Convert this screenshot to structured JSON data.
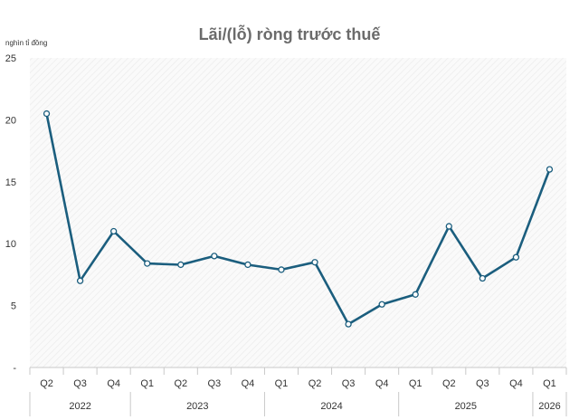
{
  "chart_data": {
    "type": "line",
    "title": "Lãi/(lỗ) ròng trước thuế",
    "unit_label": "nghìn tỉ đồng",
    "ylim": [
      0,
      25
    ],
    "yticks": [
      "-",
      "5",
      "10",
      "15",
      "20",
      "25"
    ],
    "grid": false,
    "legend": "none",
    "categories": [
      "Q2",
      "Q3",
      "Q4",
      "Q1",
      "Q2",
      "Q3",
      "Q4",
      "Q1",
      "Q2",
      "Q3",
      "Q4",
      "Q1",
      "Q2",
      "Q3",
      "Q4",
      "Q1"
    ],
    "year_groups": [
      {
        "label": "2022",
        "count": 3
      },
      {
        "label": "2023",
        "count": 4
      },
      {
        "label": "2024",
        "count": 4
      },
      {
        "label": "2025",
        "count": 4
      },
      {
        "label": "2026",
        "count": 1
      }
    ],
    "series": [
      {
        "values": [
          20.5,
          7.0,
          11.0,
          8.4,
          8.3,
          9.0,
          8.3,
          7.9,
          8.5,
          3.5,
          5.1,
          5.9,
          11.4,
          7.2,
          8.9,
          16.0
        ]
      }
    ],
    "colors": {
      "line": "#1b5e7e",
      "marker_fill": "#ffffff",
      "background_hatch": "#f0f0f0",
      "axis": "#c8c8c8",
      "text": "#333333",
      "title": "#6b6b6b"
    }
  }
}
